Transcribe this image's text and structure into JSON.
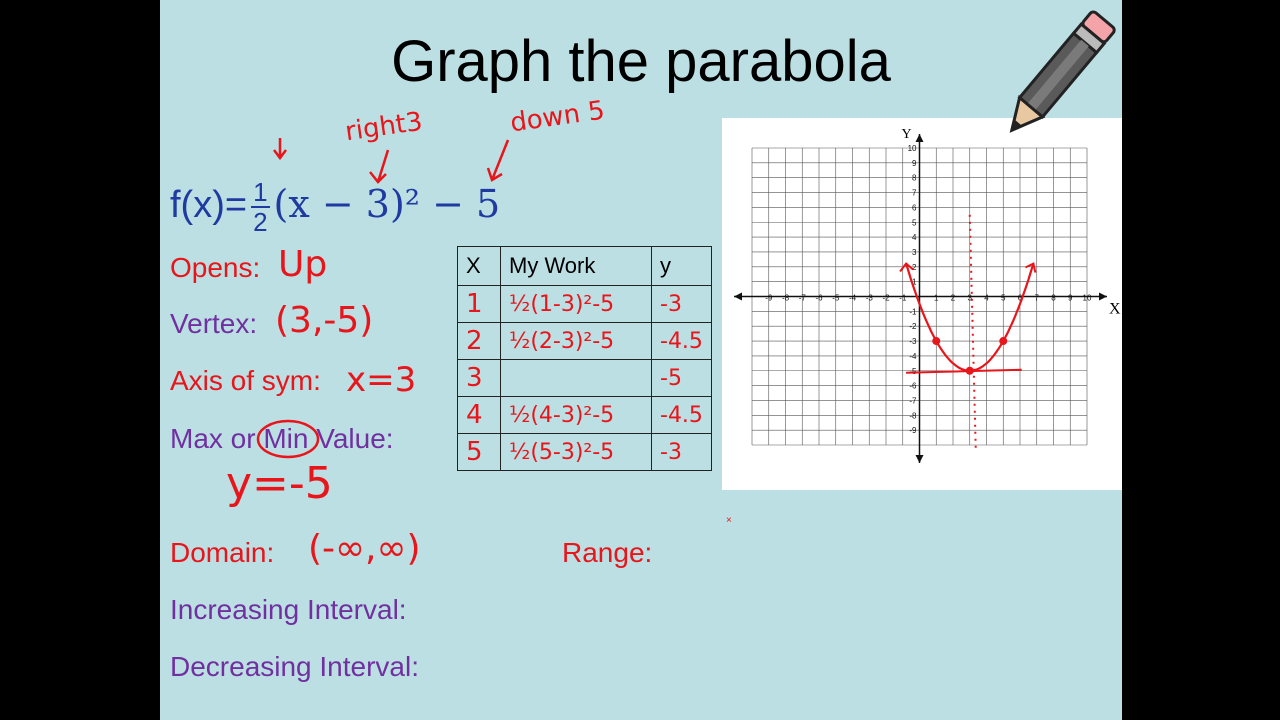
{
  "title": "Graph the parabola",
  "equation": {
    "prefix": "f(x)=",
    "frac_num": "1",
    "frac_den": "2",
    "rest": "(x − 3)² − 5"
  },
  "annotations": {
    "right3": "right3",
    "down5": "down 5"
  },
  "labels": {
    "opens": "Opens:",
    "vertex": "Vertex:",
    "axis": "Axis of sym:",
    "max_or": "Max or",
    "min": "Min",
    "value": "Value:",
    "domain": "Domain:",
    "range": "Range:",
    "increasing": "Increasing Interval:",
    "decreasing": "Decreasing Interval:"
  },
  "answers": {
    "opens": "Up",
    "vertex": "(3,-5)",
    "axis": "x=3",
    "minvalue": "y=-5",
    "domain": "(-∞,∞)"
  },
  "table": {
    "headers": [
      "X",
      "My Work",
      "y"
    ],
    "rows": [
      {
        "x": "1",
        "work": "½(1-3)²-5",
        "y": "-3"
      },
      {
        "x": "2",
        "work": "½(2-3)²-5",
        "y": "-4.5"
      },
      {
        "x": "3",
        "work": "",
        "y": "-5"
      },
      {
        "x": "4",
        "work": "½(4-3)²-5",
        "y": "-4.5"
      },
      {
        "x": "5",
        "work": "½(5-3)²-5",
        "y": "-3"
      }
    ]
  },
  "chart_data": {
    "type": "scatter",
    "xlabel": "X",
    "ylabel": "Y",
    "xlim": [
      -10,
      10
    ],
    "ylim": [
      -10,
      10
    ],
    "grid": true,
    "x_ticks": [
      "-9",
      "-8",
      "-7",
      "-6",
      "-5",
      "-4",
      "-3",
      "-2",
      "-1",
      "1",
      "2",
      "3",
      "4",
      "5",
      "6",
      "7",
      "8",
      "9",
      "10"
    ],
    "y_ticks": [
      "10",
      "9",
      "8",
      "7",
      "6",
      "5",
      "4",
      "3",
      "2",
      "1",
      "-1",
      "-2",
      "-3",
      "-4",
      "-5",
      "-6",
      "-7",
      "-8",
      "-9"
    ],
    "points": [
      {
        "x": 1,
        "y": -3
      },
      {
        "x": 3,
        "y": -5
      },
      {
        "x": 5,
        "y": -3
      }
    ],
    "curve": {
      "a": 0.5,
      "h": 3,
      "k": -5,
      "x_from": -0.8,
      "x_to": 6.8
    },
    "axis_of_symmetry": 3,
    "color": "#e8151b"
  },
  "colors": {
    "background": "#bcdfe3",
    "red": "#e8151b",
    "purple": "#7030a0",
    "blue": "#1f3aa0"
  }
}
